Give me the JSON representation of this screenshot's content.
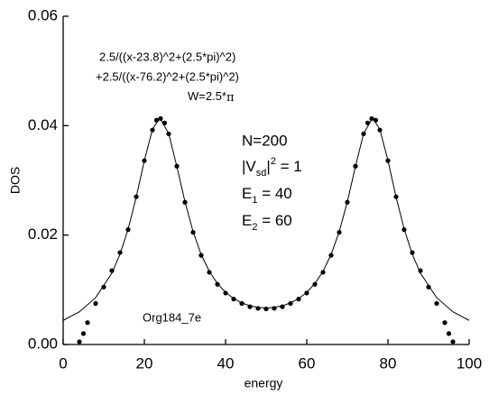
{
  "chart_data": {
    "type": "scatter",
    "xlabel": "energy",
    "ylabel": "DOS",
    "xlim": [
      0,
      100
    ],
    "xticks": [
      0,
      20,
      40,
      60,
      80,
      100
    ],
    "ylim": [
      0,
      0.06
    ],
    "yticks": [
      {
        "value": 0,
        "label": "0.00"
      },
      {
        "value": 0.02,
        "label": "0.02"
      },
      {
        "value": 0.04,
        "label": "0.04"
      },
      {
        "value": 0.06,
        "label": "0.06"
      }
    ],
    "annotations": [
      [
        "2.5/((x-23.8)^2+(2.5*pi)^2)"
      ],
      [
        "+2.5/((x-76.2)^2+(2.5*pi)^2)"
      ],
      [
        "W=2.5*",
        "π"
      ],
      [
        "N=200"
      ],
      [
        "|V",
        "sd",
        "|",
        "2",
        " = 1"
      ],
      [
        "E",
        "1",
        " = 40"
      ],
      [
        "E",
        "2",
        " = 60"
      ],
      [
        "Org184_7e"
      ]
    ],
    "series": [
      {
        "type": "scatter",
        "color": "#000000",
        "x": [
          4,
          5,
          6,
          8,
          10,
          12,
          14,
          16,
          18,
          20,
          22,
          23,
          24,
          25,
          26,
          28,
          30,
          32,
          34,
          36,
          38,
          40,
          42,
          44,
          46,
          48,
          50,
          52,
          54,
          56,
          58,
          60,
          62,
          64,
          66,
          68,
          70,
          72,
          74,
          75,
          76,
          77,
          78,
          80,
          82,
          84,
          86,
          88,
          90,
          92,
          94,
          95,
          96
        ],
        "values": [
          0.0005,
          0.002,
          0.004,
          0.0075,
          0.0105,
          0.0135,
          0.0168,
          0.021,
          0.027,
          0.0336,
          0.0392,
          0.041,
          0.0413,
          0.0405,
          0.0385,
          0.0326,
          0.026,
          0.0205,
          0.0163,
          0.0132,
          0.011,
          0.0094,
          0.0083,
          0.0075,
          0.0069,
          0.0066,
          0.0065,
          0.0066,
          0.0069,
          0.0075,
          0.0083,
          0.0094,
          0.011,
          0.0132,
          0.0163,
          0.0205,
          0.026,
          0.0326,
          0.0385,
          0.0405,
          0.0413,
          0.041,
          0.0392,
          0.0336,
          0.027,
          0.021,
          0.0168,
          0.0135,
          0.0105,
          0.0075,
          0.004,
          0.002,
          0.0005
        ]
      },
      {
        "type": "line",
        "color": "#000000",
        "x": [
          0,
          4,
          8,
          12,
          14,
          16,
          18,
          20,
          22,
          23.8,
          26,
          28,
          30,
          32,
          34,
          36,
          38,
          40,
          42,
          44,
          46,
          48,
          50,
          52,
          54,
          56,
          58,
          60,
          62,
          64,
          66,
          68,
          70,
          72,
          74,
          76.2,
          78,
          80,
          82,
          84,
          86,
          88,
          92,
          96,
          100
        ],
        "values": [
          0.00441,
          0.00598,
          0.00856,
          0.01304,
          0.01649,
          0.02108,
          0.02695,
          0.03362,
          0.03934,
          0.04142,
          0.03855,
          0.03256,
          0.02611,
          0.02063,
          0.01644,
          0.01337,
          0.01114,
          0.00954,
          0.00839,
          0.0076,
          0.00708,
          0.00678,
          0.00668,
          0.00678,
          0.00708,
          0.0076,
          0.00839,
          0.00954,
          0.01114,
          0.01337,
          0.01644,
          0.02063,
          0.02611,
          0.03256,
          0.03855,
          0.04142,
          0.03934,
          0.03362,
          0.02695,
          0.02108,
          0.01649,
          0.01304,
          0.00856,
          0.00598,
          0.00441
        ]
      }
    ]
  }
}
